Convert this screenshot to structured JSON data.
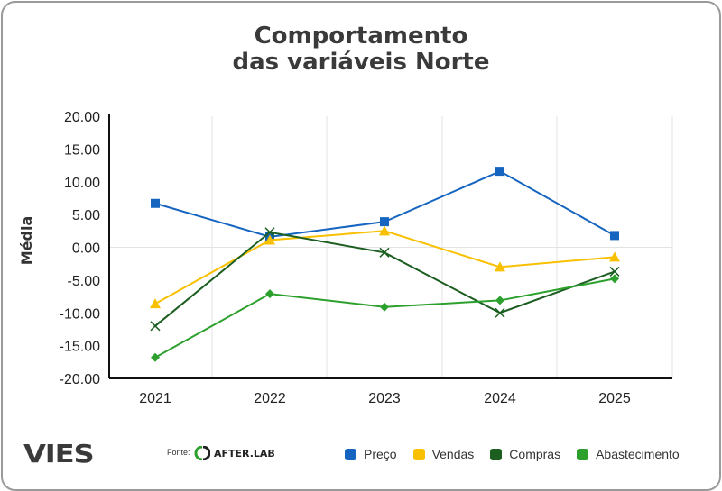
{
  "title_line1": "Comportamento",
  "title_line2": "das variáveis Norte",
  "brand": "VIES",
  "source_label": "Fonte:",
  "source_name": "AFTER.LAB",
  "chart_data": {
    "type": "line",
    "title": "Comportamento das variáveis Norte",
    "xlabel": "",
    "ylabel": "Média",
    "categories": [
      "2021",
      "2022",
      "2023",
      "2024",
      "2025"
    ],
    "ylim": [
      -20,
      20
    ],
    "yticks": [
      "20.00",
      "15.00",
      "10.00",
      "5.00",
      "0.00",
      "-5.00",
      "-10.00",
      "-15.00",
      "-20.00"
    ],
    "ytick_values": [
      20,
      15,
      10,
      5,
      0,
      -5,
      -10,
      -15,
      -20
    ],
    "grid": true,
    "legend_position": "bottom",
    "series": [
      {
        "name": "Preço",
        "color": "#1565c0",
        "marker": "square",
        "values": [
          6.7,
          1.6,
          3.9,
          11.6,
          1.8
        ]
      },
      {
        "name": "Vendas",
        "color": "#f9c000",
        "marker": "triangle",
        "values": [
          -8.6,
          1.1,
          2.5,
          -3.0,
          -1.5
        ]
      },
      {
        "name": "Compras",
        "color": "#1b5e20",
        "marker": "x",
        "values": [
          -12.0,
          2.3,
          -0.8,
          -10.0,
          -3.7
        ]
      },
      {
        "name": "Abastecimento",
        "color": "#2ca02c",
        "marker": "diamond",
        "values": [
          -16.8,
          -7.1,
          -9.1,
          -8.1,
          -4.8
        ]
      }
    ]
  }
}
